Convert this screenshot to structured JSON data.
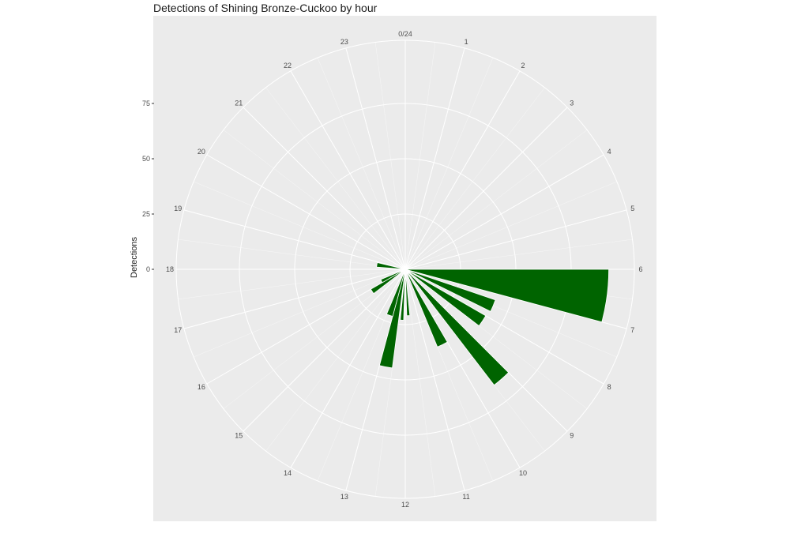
{
  "chart_data": {
    "type": "bar",
    "coord": "polar",
    "title": "Detections of Shining Bronze-Cuckoo by hour",
    "ylabel": "Detections",
    "xlabel": "",
    "ylim": [
      0,
      105
    ],
    "y_ticks": [
      0,
      25,
      50,
      75
    ],
    "categories": [
      "0/24",
      "1",
      "2",
      "3",
      "4",
      "5",
      "6",
      "7",
      "8",
      "9",
      "10",
      "11",
      "12",
      "13",
      "14",
      "15",
      "16",
      "17",
      "18",
      "19",
      "20",
      "21",
      "22",
      "23"
    ],
    "values": [
      0,
      0,
      0,
      0,
      0,
      0,
      0,
      0,
      0,
      0,
      0,
      0,
      0,
      0,
      0,
      0,
      0,
      0,
      0,
      0,
      0,
      0,
      0,
      0
    ],
    "bars": [
      {
        "x": 6.5,
        "width": 1.0,
        "value": 92
      },
      {
        "x": 7.5,
        "width": 0.5,
        "value": 43
      },
      {
        "x": 8.25,
        "width": 0.5,
        "value": 42
      },
      {
        "x": 9.25,
        "width": 0.5,
        "value": 66
      },
      {
        "x": 10.25,
        "width": 0.5,
        "value": 38
      },
      {
        "x": 11.75,
        "width": 0.25,
        "value": 21
      },
      {
        "x": 12.25,
        "width": 0.25,
        "value": 23
      },
      {
        "x": 12.75,
        "width": 0.5,
        "value": 45
      },
      {
        "x": 13.25,
        "width": 0.5,
        "value": 22
      },
      {
        "x": 15.75,
        "width": 0.5,
        "value": 18
      },
      {
        "x": 16.25,
        "width": 0.5,
        "value": 12
      },
      {
        "x": 18.6,
        "width": 0.6,
        "value": 13
      }
    ],
    "bar_color": "#006400",
    "panel_color": "#EBEBEB",
    "grid": true
  }
}
